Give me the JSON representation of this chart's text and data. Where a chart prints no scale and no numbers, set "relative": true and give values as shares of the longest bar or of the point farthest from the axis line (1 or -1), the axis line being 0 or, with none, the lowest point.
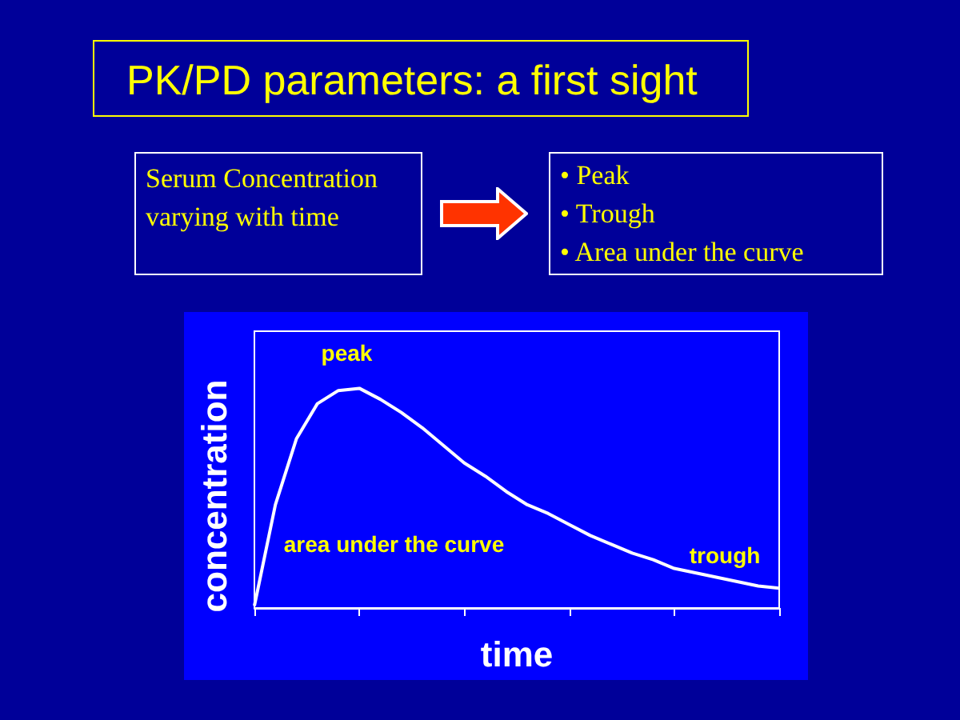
{
  "chart_data": {
    "type": "line",
    "title": "PK/PD parameters: a first sight",
    "xlabel": "time",
    "ylabel": "concentration",
    "relative": true,
    "marker": "none",
    "grid": false,
    "categories": [
      null,
      null,
      null,
      null,
      null,
      null,
      null,
      null,
      null,
      null,
      null,
      null,
      null,
      null,
      null,
      null,
      null,
      null,
      null,
      null,
      null,
      null,
      null,
      null,
      null,
      null
    ],
    "series": [
      {
        "color": "#ffffff",
        "values": [
          0.01,
          0.47,
          0.77,
          0.93,
          0.99,
          1.0,
          0.95,
          0.89,
          0.82,
          0.74,
          0.66,
          0.6,
          0.53,
          0.47,
          0.43,
          0.38,
          0.33,
          0.29,
          0.25,
          0.22,
          0.18,
          0.16,
          0.14,
          0.12,
          0.1,
          0.09
        ]
      }
    ],
    "annotations": [
      "Serum Concentration varying with time",
      "• Peak",
      "• Trough",
      "• Area under the curve",
      "peak",
      "area under the curve",
      "trough"
    ]
  }
}
